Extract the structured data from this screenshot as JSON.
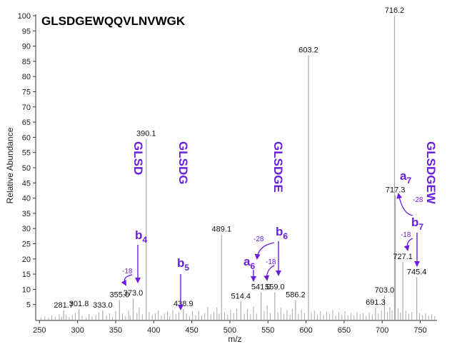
{
  "chart_data": {
    "type": "bar",
    "title": "GLSDGEWQQVLNVWGK",
    "xlabel": "m/z",
    "ylabel": "Relative Abundance",
    "xlim": [
      245,
      772
    ],
    "ylim": [
      0,
      100
    ],
    "xticks": [
      250,
      300,
      350,
      400,
      450,
      500,
      550,
      600,
      650,
      700,
      750
    ],
    "yticks": [
      5,
      10,
      15,
      20,
      25,
      30,
      35,
      40,
      45,
      50,
      55,
      60,
      65,
      70,
      75,
      80,
      85,
      90,
      95,
      100
    ],
    "bar_color": "#aaaaaa",
    "accent_color": "#6a1ee0",
    "peaks": [
      {
        "mz": 281.7,
        "intensity": 3,
        "label": "281.7"
      },
      {
        "mz": 301.8,
        "intensity": 3.5,
        "label": "301.8"
      },
      {
        "mz": 333.0,
        "intensity": 3,
        "label": "333.0"
      },
      {
        "mz": 355.0,
        "intensity": 6.5,
        "label": "355.0"
      },
      {
        "mz": 373.0,
        "intensity": 7,
        "label": "373.0"
      },
      {
        "mz": 390.1,
        "intensity": 59.5,
        "label": "390.1"
      },
      {
        "mz": 438.9,
        "intensity": 3.5,
        "label": "438.9"
      },
      {
        "mz": 489.1,
        "intensity": 28,
        "label": "489.1"
      },
      {
        "mz": 514.4,
        "intensity": 6,
        "label": "514.4"
      },
      {
        "mz": 541.0,
        "intensity": 9,
        "label": "541.0"
      },
      {
        "mz": 559.0,
        "intensity": 9,
        "label": "559.0"
      },
      {
        "mz": 586.2,
        "intensity": 6.5,
        "label": "586.2"
      },
      {
        "mz": 603.2,
        "intensity": 87,
        "label": "603.2"
      },
      {
        "mz": 691.3,
        "intensity": 4,
        "label": "691.3"
      },
      {
        "mz": 703.0,
        "intensity": 8,
        "label": "703.0"
      },
      {
        "mz": 716.2,
        "intensity": 100,
        "label": "716.2"
      },
      {
        "mz": 717.3,
        "intensity": 41,
        "label": "717.3"
      },
      {
        "mz": 727.1,
        "intensity": 19,
        "label": "727.1"
      },
      {
        "mz": 745.4,
        "intensity": 14,
        "label": "745.4"
      }
    ],
    "noise_peaks": [
      [
        252,
        0.8
      ],
      [
        257,
        1.2
      ],
      [
        262,
        0.7
      ],
      [
        266,
        1.5
      ],
      [
        271,
        0.9
      ],
      [
        276,
        1.8
      ],
      [
        279,
        1.1
      ],
      [
        285,
        1.6
      ],
      [
        289,
        0.9
      ],
      [
        293,
        1.4
      ],
      [
        297,
        2.2
      ],
      [
        306,
        1.2
      ],
      [
        311,
        0.8
      ],
      [
        315,
        1.9
      ],
      [
        319,
        1.0
      ],
      [
        324,
        1.5
      ],
      [
        328,
        2.4
      ],
      [
        338,
        1.3
      ],
      [
        342,
        2.1
      ],
      [
        346,
        1.1
      ],
      [
        350,
        2.8
      ],
      [
        359,
        2.0
      ],
      [
        363,
        1.2
      ],
      [
        367,
        3.0
      ],
      [
        369,
        1.4
      ],
      [
        378,
        2.2
      ],
      [
        381,
        4.0
      ],
      [
        385,
        1.8
      ],
      [
        394,
        2.6
      ],
      [
        398,
        1.5
      ],
      [
        402,
        2.2
      ],
      [
        406,
        3.1
      ],
      [
        410,
        1.4
      ],
      [
        414,
        2.0
      ],
      [
        418,
        2.6
      ],
      [
        421,
        1.2
      ],
      [
        425,
        3.2
      ],
      [
        429,
        1.9
      ],
      [
        433,
        2.4
      ],
      [
        443,
        2.1
      ],
      [
        447,
        1.2
      ],
      [
        451,
        2.8
      ],
      [
        455,
        1.6
      ],
      [
        459,
        3.0
      ],
      [
        463,
        1.4
      ],
      [
        467,
        2.2
      ],
      [
        471,
        4.2
      ],
      [
        475,
        1.8
      ],
      [
        479,
        2.5
      ],
      [
        483,
        4.0
      ],
      [
        486,
        2.0
      ],
      [
        493,
        2.4
      ],
      [
        497,
        1.6
      ],
      [
        501,
        3.2
      ],
      [
        505,
        2.2
      ],
      [
        509,
        3.6
      ],
      [
        519,
        2.0
      ],
      [
        523,
        3.5
      ],
      [
        527,
        1.8
      ],
      [
        531,
        4.5
      ],
      [
        535,
        2.0
      ],
      [
        545,
        3.0
      ],
      [
        549,
        4.8
      ],
      [
        553,
        2.2
      ],
      [
        563,
        2.6
      ],
      [
        567,
        4.0
      ],
      [
        571,
        2.0
      ],
      [
        575,
        3.2
      ],
      [
        579,
        1.6
      ],
      [
        582,
        3.6
      ],
      [
        590,
        2.0
      ],
      [
        594,
        3.4
      ],
      [
        598,
        2.2
      ],
      [
        607,
        2.4
      ],
      [
        611,
        3.0
      ],
      [
        615,
        1.6
      ],
      [
        619,
        2.8
      ],
      [
        623,
        1.5
      ],
      [
        627,
        2.6
      ],
      [
        631,
        1.8
      ],
      [
        635,
        3.2
      ],
      [
        639,
        1.4
      ],
      [
        643,
        2.4
      ],
      [
        647,
        1.6
      ],
      [
        651,
        2.8
      ],
      [
        655,
        1.4
      ],
      [
        659,
        2.2
      ],
      [
        663,
        1.5
      ],
      [
        667,
        2.6
      ],
      [
        671,
        1.8
      ],
      [
        675,
        2.2
      ],
      [
        679,
        1.3
      ],
      [
        683,
        2.4
      ],
      [
        687,
        1.6
      ],
      [
        695,
        2.2
      ],
      [
        699,
        3.0
      ],
      [
        707,
        2.6
      ],
      [
        710,
        4.2
      ],
      [
        713,
        3.0
      ],
      [
        721,
        3.8
      ],
      [
        724,
        2.4
      ],
      [
        731,
        3.0
      ],
      [
        735,
        2.0
      ],
      [
        739,
        2.6
      ],
      [
        749,
        2.2
      ],
      [
        753,
        1.6
      ],
      [
        757,
        2.0
      ],
      [
        761,
        1.4
      ],
      [
        765,
        1.8
      ],
      [
        769,
        1.2
      ]
    ],
    "ion_annotations": [
      {
        "ion": "b",
        "sub": "4",
        "fragment": "GLSD",
        "mz": 373.0
      },
      {
        "ion": "b",
        "sub": "5",
        "fragment": "GLSDG",
        "mz": 438.9
      },
      {
        "ion": "b",
        "sub": "6",
        "fragment": "GLSDGE",
        "mz": 559.0
      },
      {
        "ion": "a",
        "sub": "6",
        "mz": 541.0
      },
      {
        "ion": "b",
        "sub": "7",
        "fragment": "GLSDGEW",
        "mz": 745.4
      },
      {
        "ion": "a",
        "sub": "7",
        "mz": 717.3
      }
    ],
    "loss_labels": [
      "-18",
      "-28",
      "-18",
      "-28",
      "-18"
    ]
  }
}
